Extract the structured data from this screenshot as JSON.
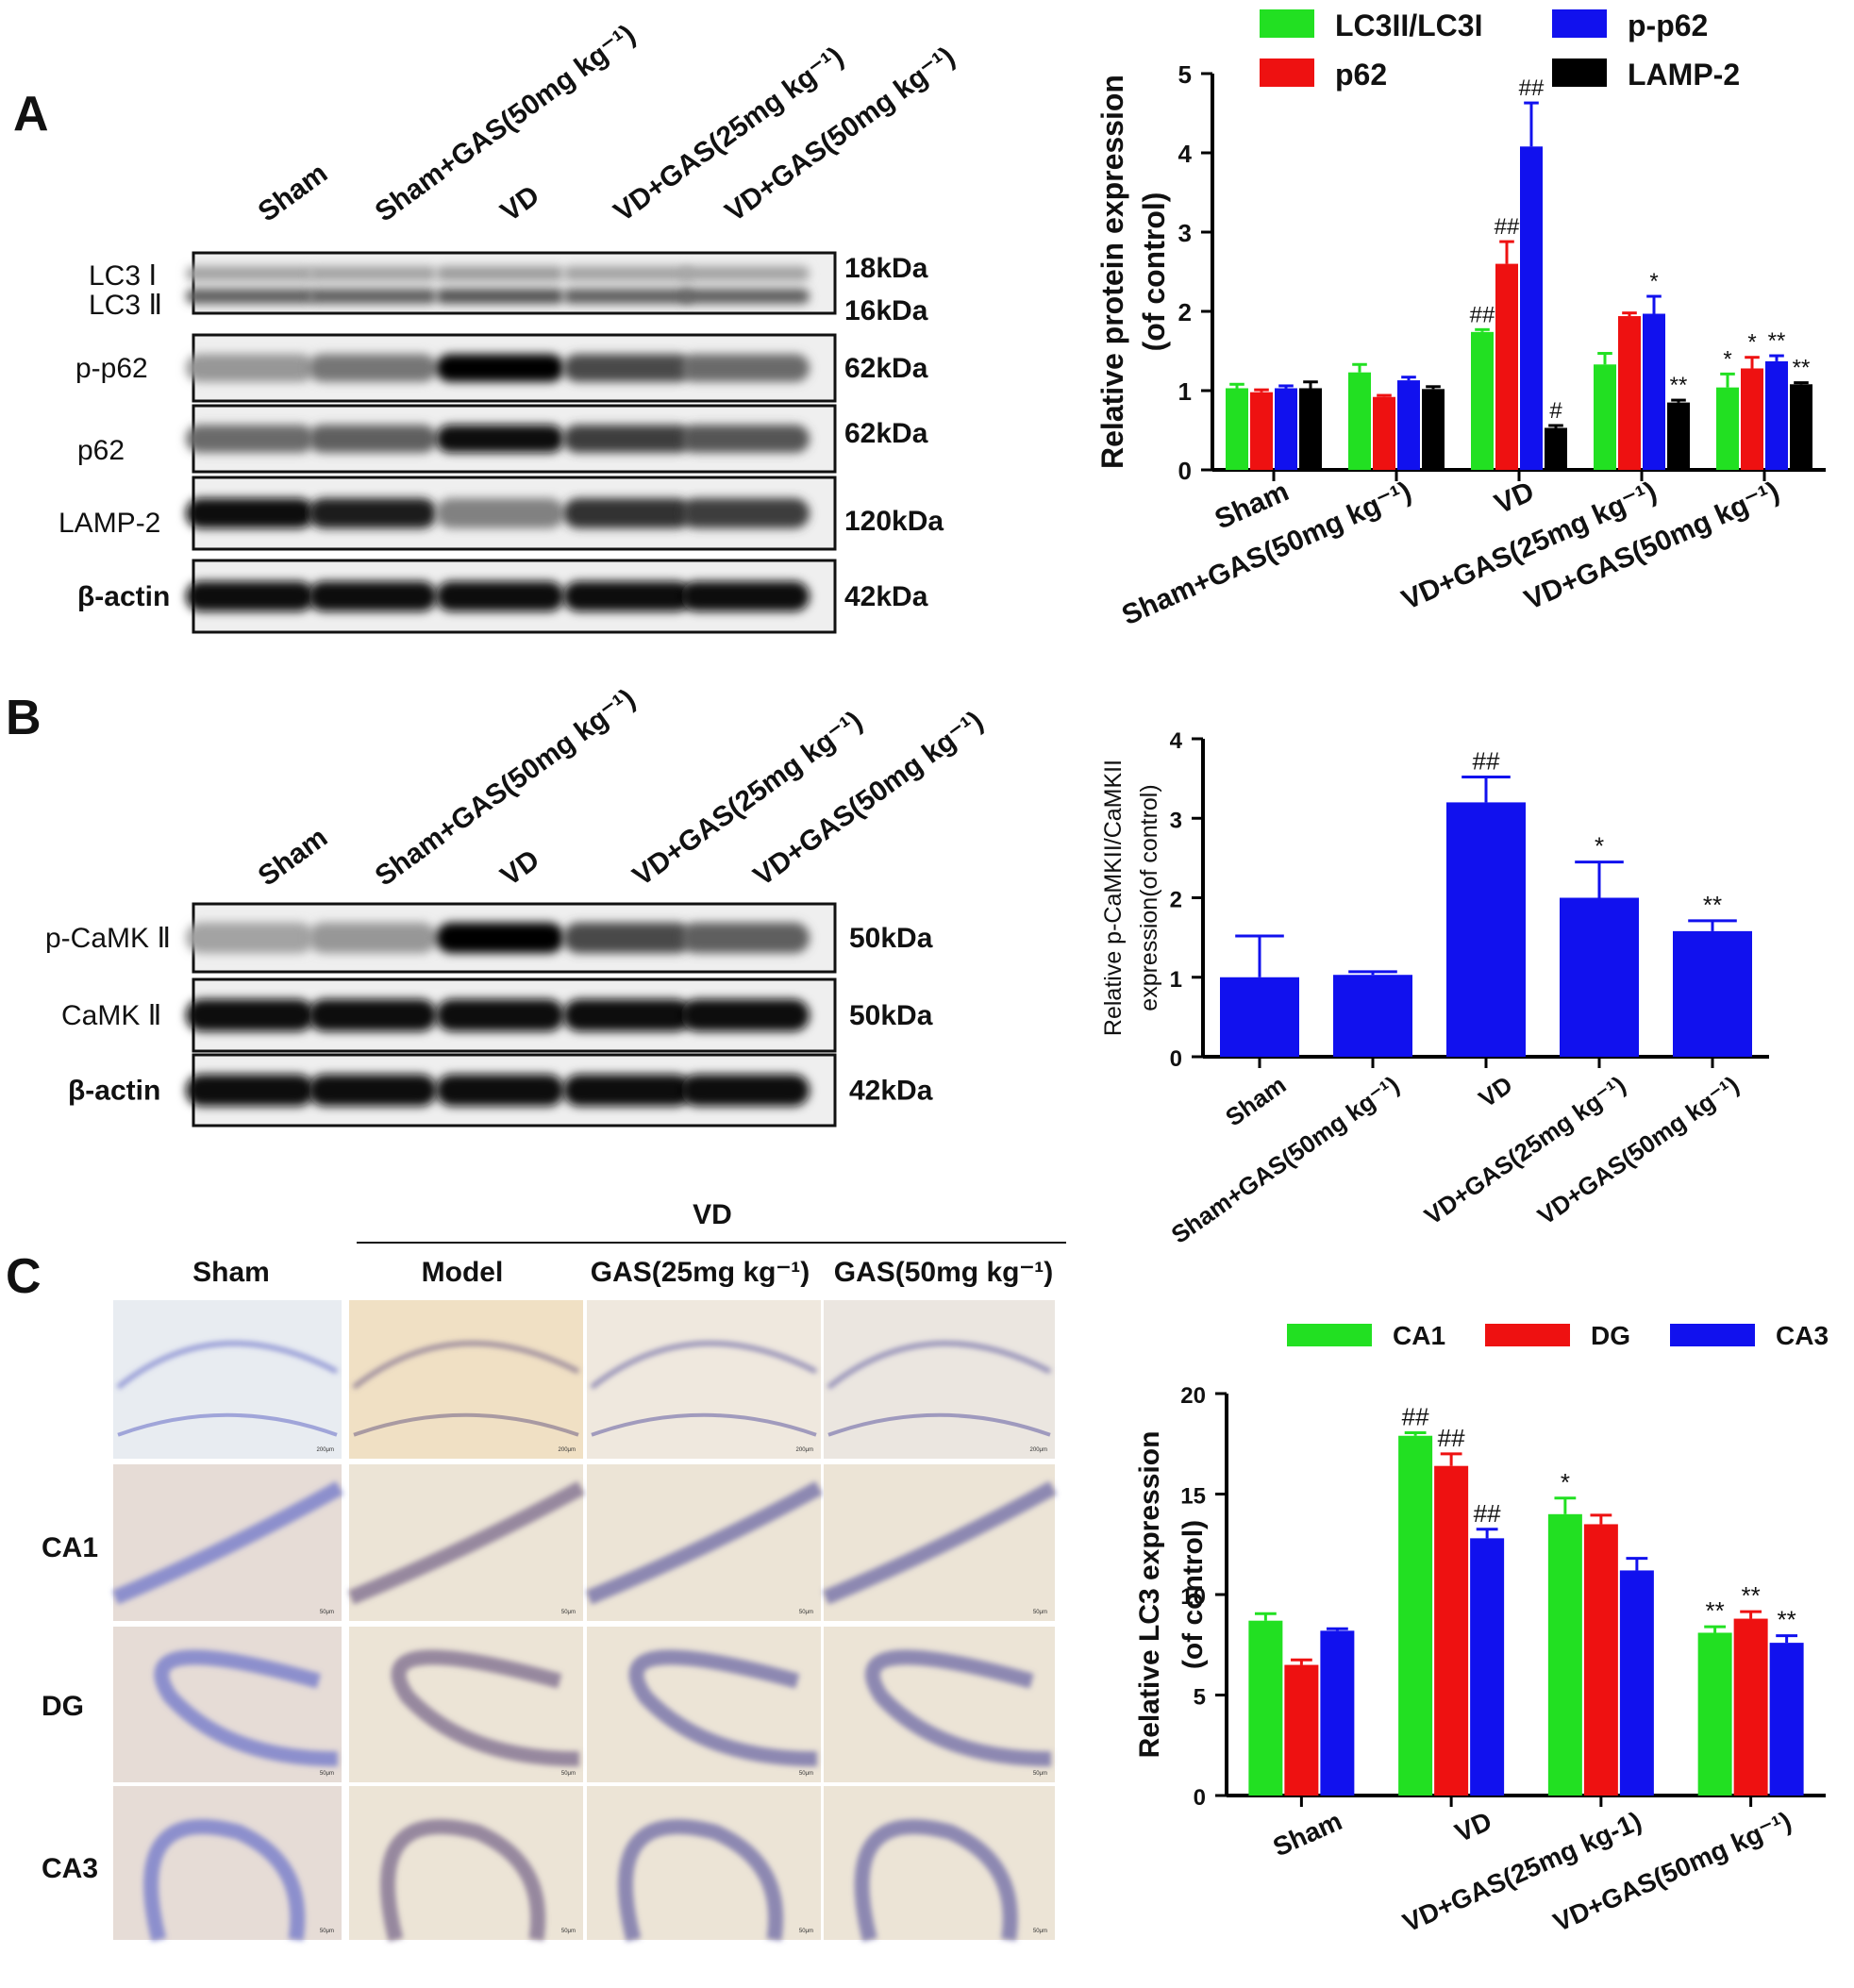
{
  "panels": {
    "A": {
      "letter": "A",
      "lanes": [
        "Sham",
        "Sham+GAS(50mg kg⁻¹)",
        "VD",
        "VD+GAS(25mg kg⁻¹)",
        "VD+GAS(50mg kg⁻¹)"
      ],
      "blots": [
        {
          "label": "LC3 Ⅰ",
          "label2": "LC3 Ⅱ",
          "kda": "18kDa",
          "kda2": "16kDa",
          "intensity": [
            0.5,
            0.5,
            0.55,
            0.5,
            0.5
          ]
        },
        {
          "label": "p-p62",
          "kda": "62kDa",
          "intensity": [
            0.35,
            0.5,
            1.0,
            0.7,
            0.55
          ]
        },
        {
          "label": "p62",
          "kda": "62kDa",
          "intensity": [
            0.55,
            0.6,
            0.95,
            0.75,
            0.65
          ]
        },
        {
          "label": "LAMP-2",
          "kda": "120kDa",
          "intensity": [
            0.95,
            0.9,
            0.45,
            0.8,
            0.75
          ]
        },
        {
          "label": "β-actin",
          "kda": "42kDa",
          "intensity": [
            0.95,
            0.95,
            0.95,
            0.95,
            0.95
          ]
        }
      ]
    },
    "B": {
      "letter": "B",
      "lanes": [
        "Sham",
        "Sham+GAS(50mg kg⁻¹)",
        "VD",
        "VD+GAS(25mg kg⁻¹)",
        "VD+GAS(50mg kg⁻¹)"
      ],
      "blots": [
        {
          "label": "p-CaMK Ⅱ",
          "kda": "50kDa",
          "intensity": [
            0.3,
            0.35,
            1.0,
            0.7,
            0.6
          ]
        },
        {
          "label": "CaMK Ⅱ",
          "kda": "50kDa",
          "intensity": [
            0.95,
            0.95,
            0.95,
            0.95,
            0.95
          ]
        },
        {
          "label": "β-actin",
          "kda": "42kDa",
          "intensity": [
            0.95,
            0.95,
            0.95,
            0.95,
            0.95
          ]
        }
      ]
    },
    "C": {
      "letter": "C",
      "group_label": "VD",
      "columns": [
        "Sham",
        "Model",
        "GAS(25mg kg⁻¹)",
        "GAS(50mg kg⁻¹)"
      ],
      "rows": [
        "",
        "CA1",
        "DG",
        "CA3"
      ],
      "scale_labels": [
        "200μm",
        "50μm",
        "50μm",
        "50μm"
      ]
    }
  },
  "chart_data": [
    {
      "type": "bar",
      "id": "A",
      "categories": [
        "Sham",
        "Sham+GAS(50mg kg⁻¹)",
        "VD",
        "VD+GAS(25mg kg⁻¹)",
        "VD+GAS(50mg kg⁻¹)"
      ],
      "series": [
        {
          "name": "LC3II/LC3I",
          "color": "#22e022",
          "values": [
            1.03,
            1.23,
            1.74,
            1.33,
            1.04
          ],
          "err": [
            0.05,
            0.1,
            0.03,
            0.14,
            0.17
          ],
          "sig": [
            "",
            "",
            "##",
            "",
            "*"
          ]
        },
        {
          "name": "p62",
          "color": "#ee1111",
          "values": [
            0.98,
            0.92,
            2.6,
            1.94,
            1.28
          ],
          "err": [
            0.03,
            0.02,
            0.28,
            0.04,
            0.14
          ],
          "sig": [
            "",
            "",
            "##",
            "",
            "*"
          ]
        },
        {
          "name": "p-p62",
          "color": "#1111ee",
          "values": [
            1.03,
            1.13,
            4.08,
            1.97,
            1.37
          ],
          "err": [
            0.03,
            0.04,
            0.55,
            0.22,
            0.07
          ],
          "sig": [
            "",
            "",
            "##",
            "*",
            "**"
          ]
        },
        {
          "name": "LAMP-2",
          "color": "#000000",
          "values": [
            1.03,
            1.02,
            0.53,
            0.85,
            1.08
          ],
          "err": [
            0.08,
            0.03,
            0.03,
            0.03,
            0.02
          ],
          "sig": [
            "",
            "",
            "#",
            "**",
            "**"
          ]
        }
      ],
      "ylabel": "Relative protein expression",
      "ylabel2": "(of control)",
      "ylim": [
        0,
        5
      ],
      "yticks": [
        "0",
        "1",
        "2",
        "3",
        "4",
        "5"
      ],
      "legend": "top"
    },
    {
      "type": "bar",
      "id": "B",
      "categories": [
        "Sham",
        "Sham+GAS(50mg kg⁻¹)",
        "VD",
        "VD+GAS(25mg kg⁻¹)",
        "VD+GAS(50mg kg⁻¹)"
      ],
      "series": [
        {
          "color": "#1111ee",
          "values": [
            1.0,
            1.03,
            3.2,
            2.0,
            1.58
          ],
          "err": [
            0.52,
            0.04,
            0.32,
            0.45,
            0.13
          ],
          "sig": [
            "",
            "",
            "##",
            "*",
            "**"
          ]
        }
      ],
      "ylabel": "Relative p-CaMKII/CaMKII",
      "ylabel2": "expression(of control)",
      "ylim": [
        0,
        4
      ],
      "yticks": [
        "0",
        "1",
        "2",
        "3",
        "4"
      ]
    },
    {
      "type": "bar",
      "id": "C",
      "categories": [
        "Sham",
        "VD",
        "VD+GAS(25mg kg-1)",
        "VD+GAS(50mg kg⁻¹)"
      ],
      "series": [
        {
          "name": "CA1",
          "color": "#22e022",
          "values": [
            8.7,
            17.9,
            14.0,
            8.1
          ],
          "err": [
            0.35,
            0.15,
            0.8,
            0.3
          ],
          "sig": [
            "",
            "##",
            "*",
            "**"
          ]
        },
        {
          "name": "DG",
          "color": "#ee1111",
          "values": [
            6.5,
            16.4,
            13.5,
            8.8
          ],
          "err": [
            0.25,
            0.6,
            0.45,
            0.35
          ],
          "sig": [
            "",
            "##",
            "",
            "**"
          ]
        },
        {
          "name": "CA3",
          "color": "#1111ee",
          "values": [
            8.2,
            12.8,
            11.2,
            7.6
          ],
          "err": [
            0.1,
            0.45,
            0.6,
            0.35
          ],
          "sig": [
            "",
            "##",
            "",
            "**"
          ]
        }
      ],
      "ylabel": "Relative LC3 expression",
      "ylabel2": "(of control)",
      "ylim": [
        0,
        20
      ],
      "yticks": [
        "0",
        "5",
        "10",
        "15",
        "20"
      ],
      "legend": "top"
    }
  ]
}
